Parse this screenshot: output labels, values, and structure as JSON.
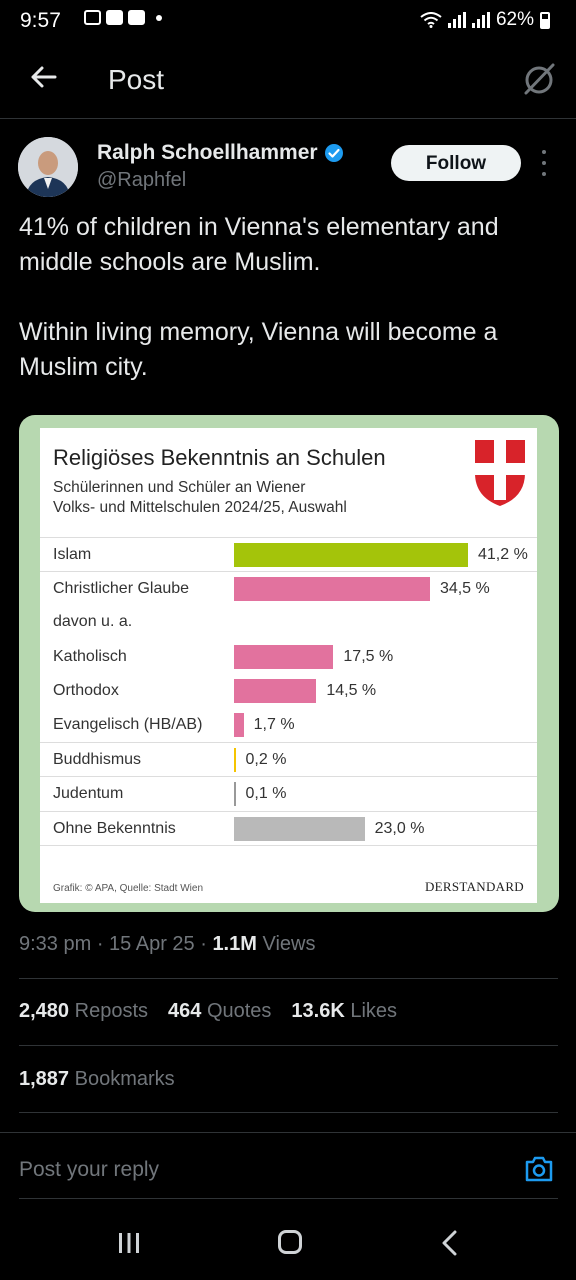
{
  "status_bar": {
    "time": "9:57",
    "battery": "62%"
  },
  "header": {
    "title": "Post"
  },
  "author": {
    "name": "Ralph Schoellhammer",
    "handle": "@Raphfel",
    "follow_label": "Follow"
  },
  "tweet": {
    "paragraphs": [
      "41% of children in Vienna's elementary and middle schools are Muslim.",
      "Within living memory, Vienna will become a Muslim city."
    ]
  },
  "chart_data": {
    "type": "bar",
    "title": "Religiöses Bekenntnis an Schulen",
    "subtitle_line1": "Schülerinnen und Schüler an Wiener",
    "subtitle_line2": "Volks- und Mittelschulen 2024/25, Auswahl",
    "categories": [
      "Islam",
      "Christlicher Glaube",
      "davon u. a.",
      "Katholisch",
      "Orthodox",
      "Evangelisch (HB/AB)",
      "Buddhismus",
      "Judentum",
      "Ohne Bekenntnis"
    ],
    "values": [
      41.2,
      34.5,
      null,
      17.5,
      14.5,
      1.7,
      0.2,
      0.1,
      23.0
    ],
    "value_labels": [
      "41,2 %",
      "34,5 %",
      "",
      "17,5 %",
      "14,5 %",
      "1,7 %",
      "0,2 %",
      "0,1 %",
      "23,0 %"
    ],
    "colors": [
      "#a4c40a",
      "#e2729e",
      null,
      "#e2729e",
      "#e2729e",
      "#e2729e",
      "#f5c400",
      "#999999",
      "#b9b9b9"
    ],
    "credit": "Grafik: © APA, Quelle: Stadt Wien",
    "brand": "DERSTANDARD"
  },
  "meta": {
    "time": "9:33 pm · 15 Apr 25 · ",
    "views_count": "1.1M",
    "views_label": " Views"
  },
  "stats": {
    "reposts_count": "2,480",
    "reposts_label": "Reposts",
    "quotes_count": "464",
    "quotes_label": "Quotes",
    "likes_count": "13.6K",
    "likes_label": "Likes",
    "bookmarks_count": "1,887",
    "bookmarks_label": "Bookmarks"
  },
  "reply": {
    "placeholder": "Post your reply"
  },
  "colors": {
    "follow_bg": "#eff3f4",
    "verified": "#1d9bf0",
    "card_border": "#b7d8b0"
  }
}
